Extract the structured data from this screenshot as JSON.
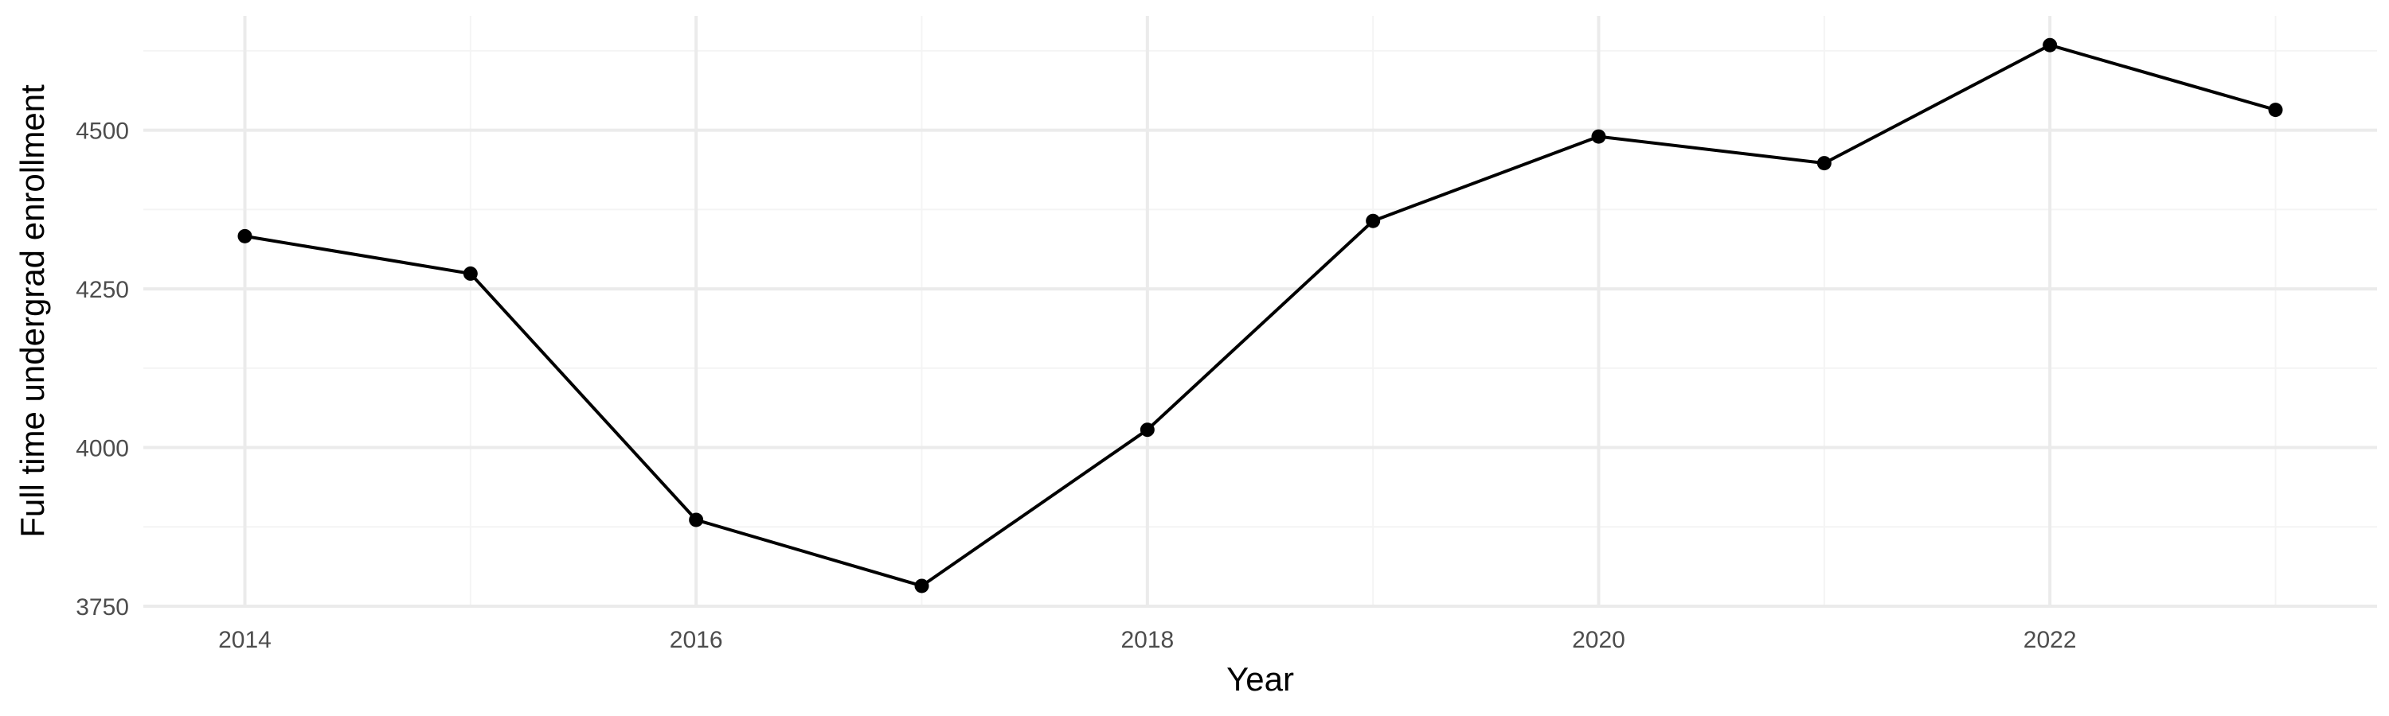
{
  "chart_data": {
    "type": "line",
    "title": "",
    "xlabel": "Year",
    "ylabel": "Full time undergrad enrollment",
    "x": [
      2014,
      2015,
      2016,
      2017,
      2018,
      2019,
      2020,
      2021,
      2022,
      2023
    ],
    "series": [
      {
        "values": [
          4333,
          4274,
          3886,
          3782,
          4028,
          4357,
          4490,
          4448,
          4634,
          4532
        ]
      }
    ],
    "xlim": [
      2013.55,
      2023.45
    ],
    "ylim": [
      3750,
      4680
    ],
    "x_ticks": [
      2014,
      2016,
      2018,
      2020,
      2022
    ],
    "x_tick_labels": [
      "2014",
      "2016",
      "2018",
      "2020",
      "2022"
    ],
    "x_minor_ticks": [
      2015,
      2017,
      2019,
      2021,
      2023
    ],
    "y_ticks": [
      3750,
      4000,
      4250,
      4500
    ],
    "y_tick_labels": [
      "3750",
      "4000",
      "4250",
      "4500"
    ],
    "y_minor_ticks": [
      3875,
      4125,
      4375,
      4625
    ],
    "grid": true,
    "legend": "none",
    "colors": {
      "line": "#000000",
      "point": "#000000",
      "grid_major": "#ebebeb",
      "grid_minor": "#f4f4f4",
      "tick_label": "#4d4d4d"
    }
  }
}
